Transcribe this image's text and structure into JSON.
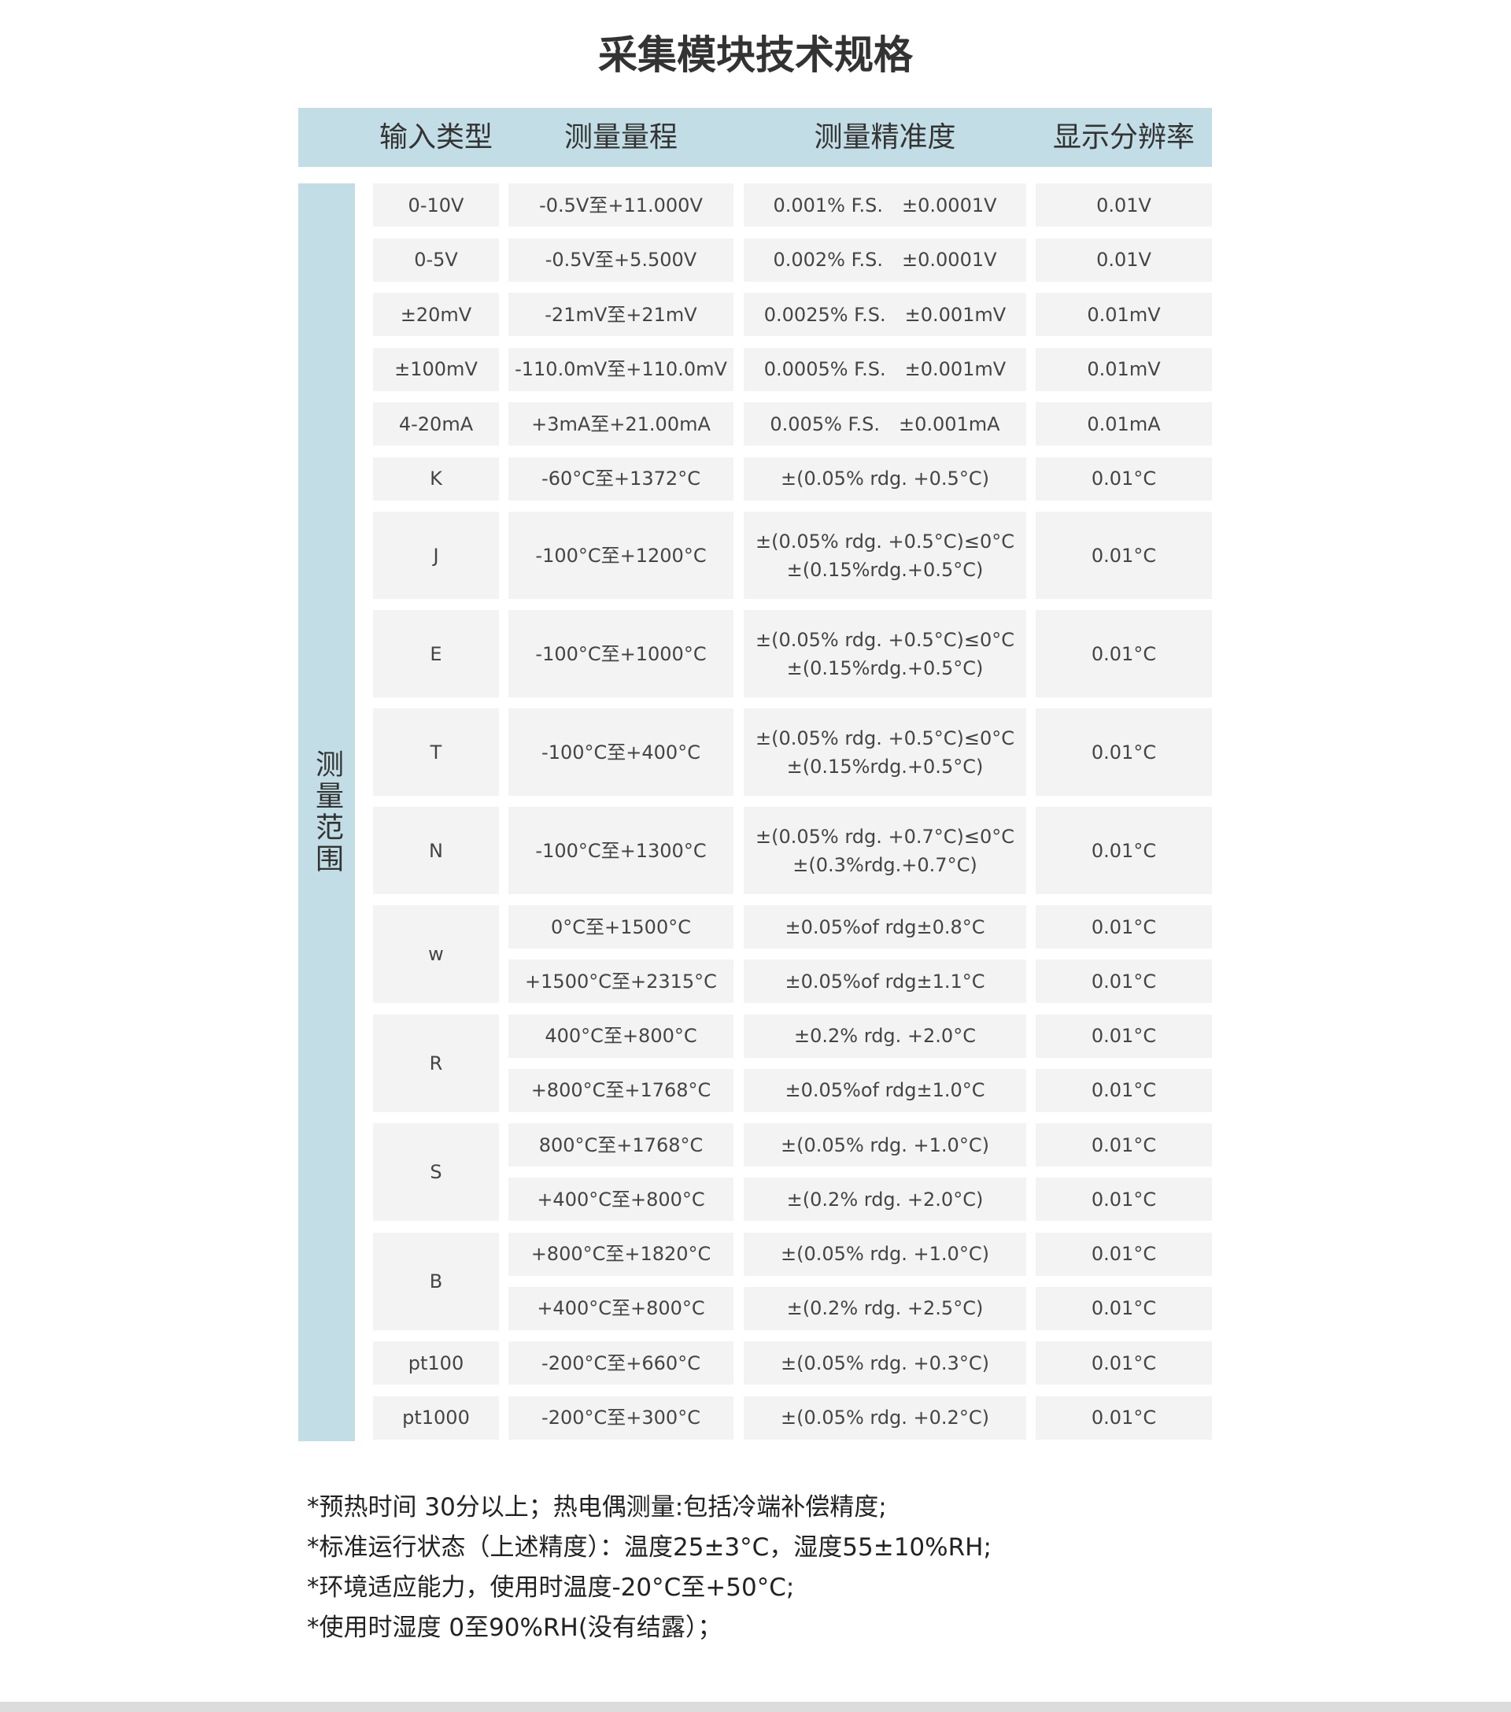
{
  "title": "采集模块技术规格",
  "header": {
    "columns": [
      "输入类型",
      "测量量程",
      "测量精准度",
      "显示分辨率"
    ],
    "side_label": "测量范围"
  },
  "rows": [
    {
      "type": "0-10V",
      "sub": [
        {
          "range": "-0.5V至+11.000V",
          "accuracy": [
            "0.001% F.S.　±0.0001V"
          ],
          "resolution": "0.01V"
        }
      ]
    },
    {
      "type": "0-5V",
      "sub": [
        {
          "range": "-0.5V至+5.500V",
          "accuracy": [
            "0.002% F.S.　±0.0001V"
          ],
          "resolution": "0.01V"
        }
      ]
    },
    {
      "type": "±20mV",
      "sub": [
        {
          "range": "-21mV至+21mV",
          "accuracy": [
            "0.0025% F.S.　±0.001mV"
          ],
          "resolution": "0.01mV"
        }
      ]
    },
    {
      "type": "±100mV",
      "sub": [
        {
          "range": "-110.0mV至+110.0mV",
          "accuracy": [
            "0.0005% F.S.　±0.001mV"
          ],
          "resolution": "0.01mV"
        }
      ]
    },
    {
      "type": "4-20mA",
      "sub": [
        {
          "range": "+3mA至+21.00mA",
          "accuracy": [
            "0.005% F.S.　±0.001mA"
          ],
          "resolution": "0.01mA"
        }
      ]
    },
    {
      "type": "K",
      "sub": [
        {
          "range": "-60°C至+1372°C",
          "accuracy": [
            "±(0.05% rdg. +0.5°C)"
          ],
          "resolution": "0.01°C"
        }
      ]
    },
    {
      "type": "J",
      "sub": [
        {
          "range": "-100°C至+1200°C",
          "accuracy": [
            "±(0.05% rdg. +0.5°C)≤0°C",
            "±(0.15%rdg.+0.5°C)"
          ],
          "resolution": "0.01°C"
        }
      ]
    },
    {
      "type": "E",
      "sub": [
        {
          "range": "-100°C至+1000°C",
          "accuracy": [
            "±(0.05% rdg. +0.5°C)≤0°C",
            "±(0.15%rdg.+0.5°C)"
          ],
          "resolution": "0.01°C"
        }
      ]
    },
    {
      "type": "T",
      "sub": [
        {
          "range": "-100°C至+400°C",
          "accuracy": [
            "±(0.05% rdg. +0.5°C)≤0°C",
            "±(0.15%rdg.+0.5°C)"
          ],
          "resolution": "0.01°C"
        }
      ]
    },
    {
      "type": "N",
      "sub": [
        {
          "range": "-100°C至+1300°C",
          "accuracy": [
            "±(0.05% rdg. +0.7°C)≤0°C",
            "±(0.3%rdg.+0.7°C)"
          ],
          "resolution": "0.01°C"
        }
      ]
    },
    {
      "type": "w",
      "sub": [
        {
          "range": "0°C至+1500°C",
          "accuracy": [
            "±0.05%of rdg±0.8°C"
          ],
          "resolution": "0.01°C"
        },
        {
          "range": "+1500°C至+2315°C",
          "accuracy": [
            "±0.05%of rdg±1.1°C"
          ],
          "resolution": "0.01°C"
        }
      ]
    },
    {
      "type": "R",
      "sub": [
        {
          "range": "400°C至+800°C",
          "accuracy": [
            "±0.2% rdg. +2.0°C"
          ],
          "resolution": "0.01°C"
        },
        {
          "range": "+800°C至+1768°C",
          "accuracy": [
            "±0.05%of rdg±1.0°C"
          ],
          "resolution": "0.01°C"
        }
      ]
    },
    {
      "type": "S",
      "sub": [
        {
          "range": "800°C至+1768°C",
          "accuracy": [
            "±(0.05% rdg. +1.0°C)"
          ],
          "resolution": "0.01°C"
        },
        {
          "range": "+400°C至+800°C",
          "accuracy": [
            "±(0.2% rdg. +2.0°C)"
          ],
          "resolution": "0.01°C"
        }
      ]
    },
    {
      "type": "B",
      "sub": [
        {
          "range": "+800°C至+1820°C",
          "accuracy": [
            "±(0.05% rdg. +1.0°C)"
          ],
          "resolution": "0.01°C"
        },
        {
          "range": "+400°C至+800°C",
          "accuracy": [
            "±(0.2% rdg. +2.5°C)"
          ],
          "resolution": "0.01°C"
        }
      ]
    },
    {
      "type": "pt100",
      "sub": [
        {
          "range": "-200°C至+660°C",
          "accuracy": [
            "±(0.05% rdg. +0.3°C)"
          ],
          "resolution": "0.01°C"
        }
      ]
    },
    {
      "type": "pt1000",
      "sub": [
        {
          "range": "-200°C至+300°C",
          "accuracy": [
            "±(0.05% rdg. +0.2°C)"
          ],
          "resolution": "0.01°C"
        }
      ]
    }
  ],
  "notes": [
    "*预热时间  30分以上；热电偶测量:包括冷端补偿精度;",
    "*标准运行状态（上述精度）：温度25±3°C，湿度55±10%RH;",
    "*环境适应能力，使用时温度-20°C至+50°C;",
    "*使用时湿度 0至90%RH(没有结露）；"
  ],
  "colors": {
    "header_bg": "#c2dde5",
    "cell_bg": "#f3f3f3"
  }
}
